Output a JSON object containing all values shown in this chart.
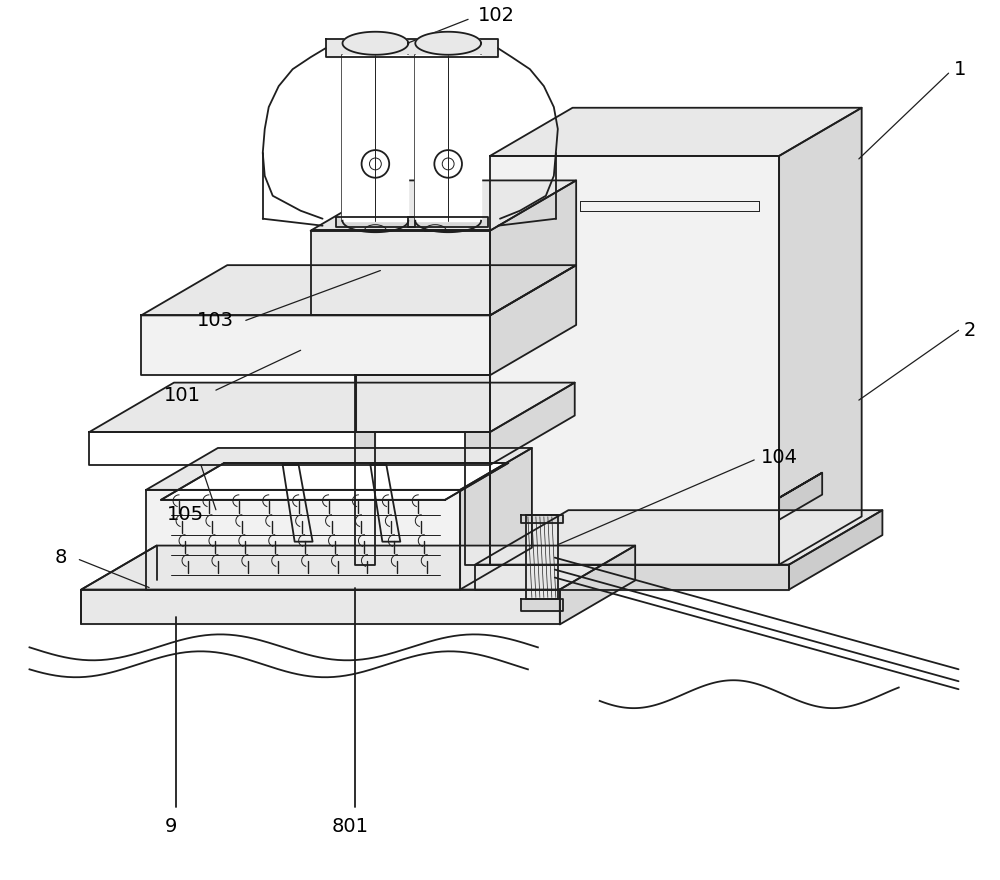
{
  "bg": "#ffffff",
  "lc": "#1e1e1e",
  "lw": 1.3,
  "tlw": 0.7,
  "shading": {
    "white": "#ffffff",
    "light1": "#f2f2f2",
    "light2": "#e8e8e8",
    "mid1": "#d8d8d8",
    "mid2": "#cccccc",
    "dark1": "#b8b8b8"
  }
}
